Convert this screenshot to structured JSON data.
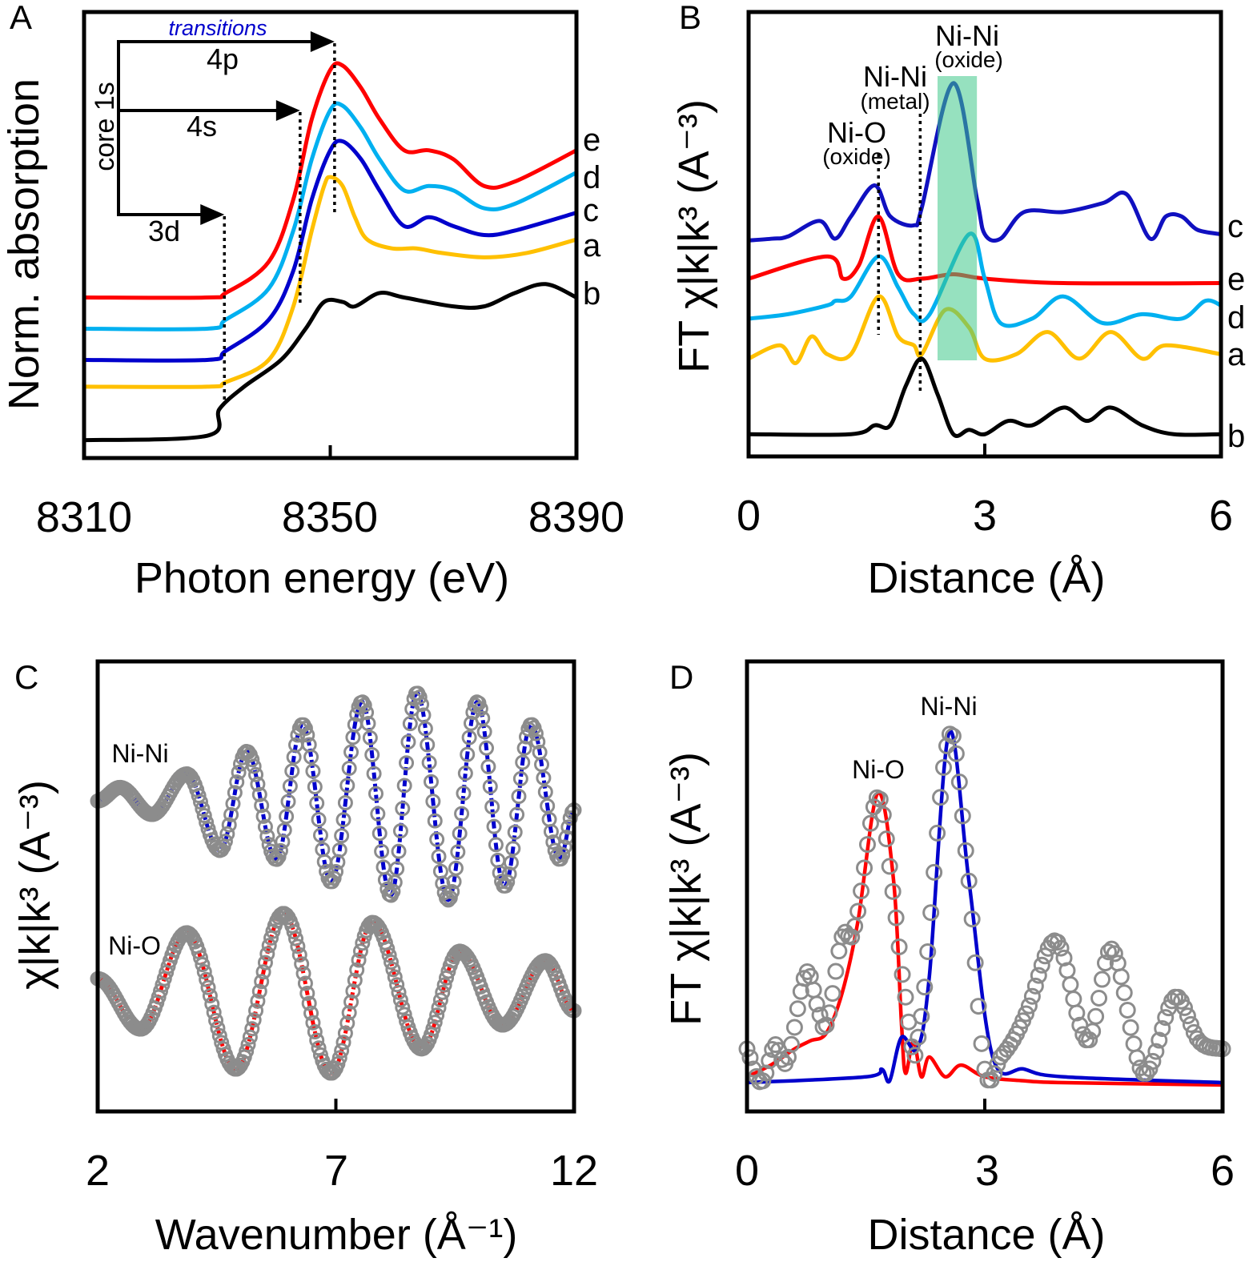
{
  "chart_data": [
    {
      "panel": "A",
      "type": "line",
      "xlabel": "Photon energy (eV)",
      "ylabel": "Norm. absorption",
      "xlim": [
        8310,
        8390
      ],
      "ylim": [
        0,
        100
      ],
      "xticks": [
        "8310",
        "8350",
        "8390"
      ],
      "grid": false,
      "annotations": {
        "transitions": "transitions",
        "core": "core 1s",
        "levels": [
          "4p",
          "4s",
          "3d"
        ],
        "level_energies": [
          8350.7,
          8345.1,
          8332.8
        ]
      },
      "series": [
        {
          "name": "e",
          "color": "#ff0000",
          "x": [
            8310,
            8330,
            8333,
            8340,
            8344,
            8347,
            8350,
            8352,
            8355,
            8358,
            8362,
            8366,
            8370,
            8375,
            8380,
            8390
          ],
          "y": [
            36,
            36,
            37,
            44,
            58,
            76,
            87,
            88,
            83,
            76,
            69,
            69,
            67,
            61,
            62,
            69
          ]
        },
        {
          "name": "d",
          "color": "#00b0f0",
          "x": [
            8310,
            8330,
            8333,
            8340,
            8344,
            8347,
            8350,
            8352,
            8355,
            8358,
            8362,
            8366,
            8370,
            8375,
            8380,
            8390
          ],
          "y": [
            29,
            29,
            31,
            38,
            51,
            67,
            78,
            79,
            74,
            67,
            60,
            61,
            60,
            56,
            57,
            64
          ]
        },
        {
          "name": "c",
          "color": "#0000cc",
          "x": [
            8310,
            8330,
            8333,
            8340,
            8344,
            8347,
            8350,
            8352,
            8355,
            8358,
            8362,
            8366,
            8370,
            8375,
            8380,
            8390
          ],
          "y": [
            22,
            22,
            24,
            31,
            42,
            58,
            69,
            71,
            67,
            60,
            52,
            54,
            52,
            50,
            51,
            55
          ]
        },
        {
          "name": "a",
          "color": "#ffc000",
          "x": [
            8310,
            8330,
            8333,
            8340,
            8344,
            8347,
            8349,
            8350,
            8352,
            8354,
            8356,
            8360,
            8364,
            8368,
            8375,
            8382,
            8390
          ],
          "y": [
            16,
            16,
            17,
            22,
            34,
            51,
            61,
            63,
            61,
            54,
            49,
            47,
            47,
            46,
            45,
            46,
            49
          ]
        },
        {
          "name": "b",
          "color": "#000000",
          "x": [
            8310,
            8330,
            8332,
            8336,
            8342,
            8346,
            8349,
            8352,
            8354,
            8358,
            8362,
            8370,
            8375,
            8380,
            8385,
            8390
          ],
          "y": [
            4,
            5,
            11,
            16,
            22,
            29,
            35,
            35,
            34,
            37,
            36,
            34,
            34,
            37,
            39,
            36
          ]
        }
      ]
    },
    {
      "panel": "B",
      "type": "line",
      "xlabel": "Distance (Å)",
      "ylabel": "FT χ|k|k³ (A⁻³)",
      "xlim": [
        0,
        6
      ],
      "ylim": [
        0,
        100
      ],
      "xticks": [
        "0",
        "3",
        "6"
      ],
      "grid": false,
      "highlight_band": {
        "x": [
          2.4,
          2.9
        ],
        "color": "#40c98a"
      },
      "annotations": [
        {
          "label": "Ni-O",
          "sub": "(oxide)",
          "x": 1.65
        },
        {
          "label": "Ni-Ni",
          "sub": "(metal)",
          "x": 2.18
        },
        {
          "label": "Ni-Ni",
          "sub": "(oxide)",
          "x": 2.6
        }
      ],
      "series": [
        {
          "name": "c",
          "color": "#1010c0",
          "x": [
            0,
            0.3,
            0.5,
            0.9,
            1.1,
            1.3,
            1.6,
            1.8,
            2.1,
            2.2,
            2.6,
            2.9,
            3.0,
            3.2,
            3.5,
            4.0,
            4.5,
            4.8,
            5.1,
            5.3,
            5.5,
            5.7,
            6.0
          ],
          "y": [
            48.6,
            49,
            49.5,
            53,
            49,
            54,
            61,
            54,
            52,
            56,
            84,
            58,
            50,
            49,
            55,
            55,
            57,
            59,
            49,
            54,
            54,
            51,
            50
          ]
        },
        {
          "name": "e",
          "color": "#ff0000",
          "x": [
            0,
            1.0,
            1.2,
            1.4,
            1.65,
            1.9,
            2.2,
            2.6,
            3.0,
            4.0,
            6.0
          ],
          "y": [
            40,
            45,
            40,
            43,
            54,
            41,
            40,
            41,
            40,
            39,
            39
          ]
        },
        {
          "name": "d",
          "color": "#00b0f0",
          "x": [
            0,
            0.5,
            1.0,
            1.1,
            1.3,
            1.65,
            1.9,
            2.1,
            2.3,
            2.8,
            3.0,
            3.2,
            3.6,
            4.0,
            4.5,
            5.0,
            5.5,
            5.8,
            6.0
          ],
          "y": [
            31,
            32,
            34,
            35,
            36,
            45,
            38,
            32,
            32,
            50,
            40,
            30,
            31,
            36,
            30,
            32,
            31,
            35,
            34
          ]
        },
        {
          "name": "a",
          "color": "#ffc000",
          "x": [
            0,
            0.4,
            0.6,
            0.8,
            1.0,
            1.3,
            1.65,
            1.9,
            2.1,
            2.2,
            2.5,
            2.8,
            3.0,
            3.4,
            3.8,
            4.2,
            4.6,
            5.0,
            5.3,
            6.0
          ],
          "y": [
            22,
            25,
            21,
            27,
            23,
            23,
            36,
            27,
            25,
            23,
            33,
            29,
            22,
            23,
            28,
            22,
            28,
            22,
            25,
            23
          ]
        },
        {
          "name": "b",
          "color": "#000000",
          "x": [
            0,
            1.3,
            1.6,
            1.8,
            2.0,
            2.2,
            2.4,
            2.6,
            2.8,
            3.0,
            3.3,
            3.6,
            4.0,
            4.3,
            4.6,
            5.0,
            5.4,
            6.0
          ],
          "y": [
            5,
            5,
            7,
            7,
            16,
            22,
            14,
            5,
            6,
            5,
            8,
            7,
            11,
            8,
            11,
            7,
            5,
            5
          ]
        }
      ]
    },
    {
      "panel": "C",
      "type": "line",
      "xlabel": "Wavenumber (Å⁻¹)",
      "ylabel": "χ|k|k³ (A⁻³)",
      "xlim": [
        2,
        12
      ],
      "ylim": [
        0,
        100
      ],
      "xticks": [
        "2",
        "7",
        "12"
      ],
      "grid": false,
      "series": [
        {
          "name": "Ni-Ni",
          "fit_color": "#0000cc",
          "marker_color": "#8c8c8c",
          "x": [
            2.0,
            2.47,
            3.14,
            3.87,
            4.57,
            5.13,
            5.75,
            6.3,
            6.9,
            7.55,
            8.15,
            8.7,
            9.36,
            9.97,
            10.54,
            11.1,
            11.7,
            12.0
          ],
          "y": [
            69,
            72,
            66,
            75,
            58,
            80,
            56,
            86,
            51,
            91,
            48,
            93,
            47,
            91,
            50,
            86,
            56,
            67
          ]
        },
        {
          "name": "Ni-O",
          "fit_color": "#ff0000",
          "marker_color": "#8c8c8c",
          "x": [
            2.0,
            2.9,
            3.87,
            4.9,
            5.9,
            6.9,
            7.77,
            8.8,
            9.6,
            10.5,
            11.4,
            12.0
          ],
          "y": [
            29.5,
            18.3,
            39.7,
            9.4,
            44,
            8.5,
            42,
            13.9,
            35.6,
            19.2,
            33.5,
            22.4
          ]
        }
      ]
    },
    {
      "panel": "D",
      "type": "line",
      "xlabel": "Distance (Å)",
      "ylabel": "FT χ|k|k³ (A⁻³)",
      "xlim": [
        0,
        6
      ],
      "ylim": [
        0,
        100
      ],
      "xticks": [
        "0",
        "3",
        "6"
      ],
      "grid": false,
      "annotations": [
        {
          "label": "Ni-O",
          "x": 1.65
        },
        {
          "label": "Ni-Ni",
          "x": 2.55
        }
      ],
      "series": [
        {
          "name": "Ni-O",
          "color": "#ff0000",
          "x": [
            0,
            0.3,
            0.6,
            0.8,
            1.0,
            1.2,
            1.4,
            1.65,
            1.85,
            1.95,
            2.0,
            2.1,
            2.2,
            2.3,
            2.5,
            2.7,
            3.0,
            3.5,
            4.0,
            6.0
          ],
          "y": [
            7.7,
            10.3,
            13.9,
            15.7,
            17.4,
            26.3,
            42.3,
            70.8,
            51.2,
            19.2,
            8.5,
            15.7,
            7.7,
            12.1,
            7.7,
            10.3,
            7.7,
            6.8,
            6.4,
            5.9
          ]
        },
        {
          "name": "Ni-Ni",
          "color": "#0000cc",
          "x": [
            0,
            1.5,
            1.7,
            1.8,
            1.95,
            2.15,
            2.3,
            2.55,
            2.8,
            3.1,
            3.5,
            4.0,
            6.0
          ],
          "y": [
            6.4,
            7.7,
            9.4,
            6.8,
            16.5,
            13.9,
            29.9,
            84.2,
            51.2,
            12.1,
            9.4,
            7.7,
            6.4
          ]
        },
        {
          "name": "data",
          "color": "#8c8c8c",
          "marker": "open-circle",
          "x": [
            0,
            0.1,
            0.2,
            0.35,
            0.5,
            0.75,
            0.9,
            1.0,
            1.2,
            1.35,
            1.65,
            1.85,
            2.0,
            2.15,
            2.55,
            2.8,
            3.0,
            3.2,
            3.5,
            3.9,
            4.3,
            4.6,
            5.0,
            5.4,
            5.7,
            6.0
          ],
          "y": [
            13.9,
            8.5,
            6.8,
            14.8,
            11.2,
            30.8,
            22.8,
            19.2,
            38.8,
            40.6,
            69.9,
            47.7,
            25.4,
            15.7,
            83.3,
            51.2,
            9.4,
            12.1,
            21,
            37.9,
            15.7,
            36.1,
            8.5,
            25.4,
            15.7,
            13.9
          ]
        }
      ]
    }
  ]
}
